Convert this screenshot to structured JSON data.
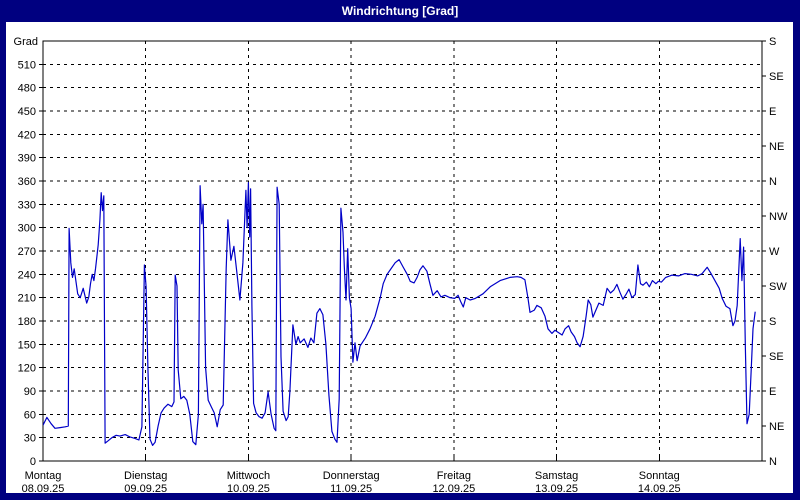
{
  "title": "Windrichtung [Grad]",
  "colors": {
    "titlebar_bg": "#000080",
    "titlebar_text": "#ffffff",
    "panel_bg": "#ffffff",
    "frame": "#000000",
    "grid": "#000000",
    "line": "#0000c8",
    "text": "#000000"
  },
  "chart_data": {
    "type": "line",
    "title": "Windrichtung [Grad]",
    "grid": true,
    "legend": "none",
    "y_axis_left": {
      "label": "Grad",
      "min": 0,
      "max": 540,
      "tick_step": 30,
      "tick_labels": [
        "0",
        "30",
        "60",
        "90",
        "120",
        "150",
        "180",
        "210",
        "240",
        "270",
        "300",
        "330",
        "360",
        "390",
        "420",
        "450",
        "480",
        "510"
      ]
    },
    "y_axis_right": {
      "description": "compass directions every 45 degrees",
      "labels": [
        [
          0,
          "N"
        ],
        [
          45,
          "NE"
        ],
        [
          90,
          "E"
        ],
        [
          135,
          "SE"
        ],
        [
          180,
          "S"
        ],
        [
          225,
          "SW"
        ],
        [
          270,
          "W"
        ],
        [
          315,
          "NW"
        ],
        [
          360,
          "N"
        ],
        [
          405,
          "NE"
        ],
        [
          450,
          "E"
        ],
        [
          495,
          "SE"
        ],
        [
          540,
          "S"
        ]
      ]
    },
    "x_axis": {
      "hours_total": 168,
      "days": [
        {
          "name": "Montag",
          "date": "08.09.25"
        },
        {
          "name": "Dienstag",
          "date": "09.09.25"
        },
        {
          "name": "Mittwoch",
          "date": "10.09.25"
        },
        {
          "name": "Donnerstag",
          "date": "11.09.25"
        },
        {
          "name": "Freitag",
          "date": "12.09.25"
        },
        {
          "name": "Samstag",
          "date": "13.09.25"
        },
        {
          "name": "Sonntag",
          "date": "14.09.25"
        }
      ]
    },
    "series": [
      {
        "name": "Windrichtung",
        "unit": "Grad",
        "color": "#0000c8",
        "points_hours_deg": [
          [
            0,
            46
          ],
          [
            0.9,
            56
          ],
          [
            1.9,
            48
          ],
          [
            2.8,
            42
          ],
          [
            4,
            43
          ],
          [
            5.2,
            44
          ],
          [
            5.9,
            45
          ],
          [
            6.1,
            299
          ],
          [
            6.5,
            255
          ],
          [
            6.9,
            236
          ],
          [
            7.3,
            247
          ],
          [
            8.1,
            215
          ],
          [
            8.7,
            210
          ],
          [
            9.4,
            222
          ],
          [
            10.2,
            203
          ],
          [
            10.7,
            211
          ],
          [
            11.1,
            228
          ],
          [
            11.5,
            240
          ],
          [
            11.9,
            232
          ],
          [
            12.3,
            248
          ],
          [
            12.9,
            278
          ],
          [
            13.3,
            310
          ],
          [
            13.6,
            345
          ],
          [
            13.9,
            322
          ],
          [
            14.2,
            341
          ],
          [
            14.5,
            23
          ],
          [
            15.2,
            26
          ],
          [
            16.1,
            30
          ],
          [
            17.1,
            33
          ],
          [
            18,
            32
          ],
          [
            19.2,
            34
          ],
          [
            20.3,
            31
          ],
          [
            21.5,
            29
          ],
          [
            22.4,
            27
          ],
          [
            23.1,
            44
          ],
          [
            23.7,
            252
          ],
          [
            24.1,
            224
          ],
          [
            24.5,
            120
          ],
          [
            25,
            28
          ],
          [
            25.6,
            20
          ],
          [
            26.2,
            24
          ],
          [
            26.9,
            45
          ],
          [
            27.6,
            62
          ],
          [
            28.3,
            68
          ],
          [
            29.2,
            73
          ],
          [
            30.1,
            70
          ],
          [
            30.6,
            76
          ],
          [
            30.9,
            239
          ],
          [
            31.3,
            225
          ],
          [
            31.6,
            117
          ],
          [
            32.2,
            80
          ],
          [
            32.9,
            83
          ],
          [
            33.6,
            78
          ],
          [
            34.3,
            60
          ],
          [
            35,
            25
          ],
          [
            35.7,
            21
          ],
          [
            36.3,
            60
          ],
          [
            36.7,
            354
          ],
          [
            37.1,
            305
          ],
          [
            37.4,
            330
          ],
          [
            38,
            120
          ],
          [
            38.6,
            78
          ],
          [
            39.3,
            70
          ],
          [
            40,
            62
          ],
          [
            40.7,
            44
          ],
          [
            41.4,
            66
          ],
          [
            42.1,
            72
          ],
          [
            42.8,
            248
          ],
          [
            43.2,
            310
          ],
          [
            43.9,
            258
          ],
          [
            44.6,
            276
          ],
          [
            45.3,
            242
          ],
          [
            46,
            207
          ],
          [
            46.7,
            255
          ],
          [
            47.4,
            348
          ],
          [
            47.7,
            300
          ],
          [
            48,
            358
          ],
          [
            48.3,
            288
          ],
          [
            48.5,
            350
          ],
          [
            48.8,
            200
          ],
          [
            49.2,
            74
          ],
          [
            49.8,
            62
          ],
          [
            50.5,
            57
          ],
          [
            51.2,
            55
          ],
          [
            51.9,
            62
          ],
          [
            52.6,
            89
          ],
          [
            53.3,
            60
          ],
          [
            54,
            42
          ],
          [
            54.4,
            39
          ],
          [
            54.7,
            352
          ],
          [
            55.2,
            330
          ],
          [
            55.6,
            134
          ],
          [
            56.1,
            64
          ],
          [
            56.8,
            52
          ],
          [
            57.3,
            57
          ],
          [
            57.7,
            90
          ],
          [
            58.4,
            175
          ],
          [
            59.1,
            150
          ],
          [
            59.6,
            160
          ],
          [
            60.1,
            152
          ],
          [
            61,
            157
          ],
          [
            61.9,
            146
          ],
          [
            62.6,
            158
          ],
          [
            63.3,
            152
          ],
          [
            64,
            190
          ],
          [
            64.7,
            196
          ],
          [
            65.4,
            188
          ],
          [
            66.1,
            150
          ],
          [
            66.8,
            85
          ],
          [
            67.5,
            38
          ],
          [
            68.2,
            28
          ],
          [
            68.7,
            24
          ],
          [
            69.2,
            80
          ],
          [
            69.6,
            325
          ],
          [
            70.1,
            294
          ],
          [
            70.4,
            250
          ],
          [
            70.8,
            207
          ],
          [
            71.2,
            273
          ],
          [
            71.6,
            210
          ],
          [
            72,
            196
          ],
          [
            72.4,
            127
          ],
          [
            72.9,
            152
          ],
          [
            73.4,
            129
          ],
          [
            74.1,
            148
          ],
          [
            75.3,
            158
          ],
          [
            76.4,
            170
          ],
          [
            77.6,
            186
          ],
          [
            78.8,
            210
          ],
          [
            79.5,
            228
          ],
          [
            80.4,
            240
          ],
          [
            81.3,
            247
          ],
          [
            82.3,
            255
          ],
          [
            83.2,
            259
          ],
          [
            84.1,
            250
          ],
          [
            85.1,
            240
          ],
          [
            85.8,
            231
          ],
          [
            86.7,
            229
          ],
          [
            87.4,
            236
          ],
          [
            88.1,
            246
          ],
          [
            88.8,
            251
          ],
          [
            89.7,
            244
          ],
          [
            90.4,
            228
          ],
          [
            91.1,
            213
          ],
          [
            92.1,
            219
          ],
          [
            93,
            211
          ],
          [
            93.9,
            213
          ],
          [
            95.1,
            210
          ],
          [
            96.2,
            209
          ],
          [
            97,
            213
          ],
          [
            97.6,
            205
          ],
          [
            98.2,
            198
          ],
          [
            98.8,
            210
          ],
          [
            99.8,
            207
          ],
          [
            101,
            209
          ],
          [
            102.8,
            215
          ],
          [
            104.5,
            224
          ],
          [
            106.8,
            232
          ],
          [
            109.1,
            236
          ],
          [
            110.8,
            237
          ],
          [
            111.7,
            236
          ],
          [
            112.6,
            233
          ],
          [
            113.3,
            210
          ],
          [
            113.8,
            191
          ],
          [
            114.8,
            194
          ],
          [
            115.4,
            200
          ],
          [
            116.4,
            197
          ],
          [
            117.3,
            186
          ],
          [
            118,
            170
          ],
          [
            118.9,
            164
          ],
          [
            119.6,
            168
          ],
          [
            120.2,
            166
          ],
          [
            121.3,
            162
          ],
          [
            122,
            170
          ],
          [
            122.8,
            174
          ],
          [
            123.4,
            166
          ],
          [
            124.2,
            160
          ],
          [
            124.8,
            152
          ],
          [
            125.5,
            147
          ],
          [
            126.2,
            160
          ],
          [
            126.9,
            186
          ],
          [
            127.4,
            207
          ],
          [
            128,
            201
          ],
          [
            128.5,
            185
          ],
          [
            129.2,
            194
          ],
          [
            129.9,
            203
          ],
          [
            130.9,
            200
          ],
          [
            131.8,
            222
          ],
          [
            132.6,
            216
          ],
          [
            133.4,
            220
          ],
          [
            134.1,
            227
          ],
          [
            134.8,
            217
          ],
          [
            135.5,
            208
          ],
          [
            136.2,
            214
          ],
          [
            136.9,
            221
          ],
          [
            137.6,
            210
          ],
          [
            138.4,
            214
          ],
          [
            139,
            252
          ],
          [
            139.6,
            228
          ],
          [
            140.2,
            226
          ],
          [
            141,
            230
          ],
          [
            141.7,
            224
          ],
          [
            142.4,
            232
          ],
          [
            143.2,
            228
          ],
          [
            143.8,
            231
          ],
          [
            144.5,
            230
          ],
          [
            145.5,
            236
          ],
          [
            147,
            239
          ],
          [
            148.5,
            238
          ],
          [
            150,
            241
          ],
          [
            151.5,
            240
          ],
          [
            153,
            238
          ],
          [
            154,
            241
          ],
          [
            155.2,
            249
          ],
          [
            156,
            242
          ],
          [
            157,
            232
          ],
          [
            158,
            222
          ],
          [
            158.7,
            209
          ],
          [
            159.6,
            199
          ],
          [
            160.5,
            196
          ],
          [
            161.2,
            174
          ],
          [
            161.7,
            180
          ],
          [
            162.2,
            200
          ],
          [
            162.9,
            286
          ],
          [
            163.3,
            232
          ],
          [
            163.7,
            275
          ],
          [
            164.1,
            150
          ],
          [
            164.5,
            48
          ],
          [
            165,
            60
          ],
          [
            165.5,
            120
          ],
          [
            165.9,
            170
          ],
          [
            166.4,
            192
          ]
        ]
      }
    ]
  }
}
